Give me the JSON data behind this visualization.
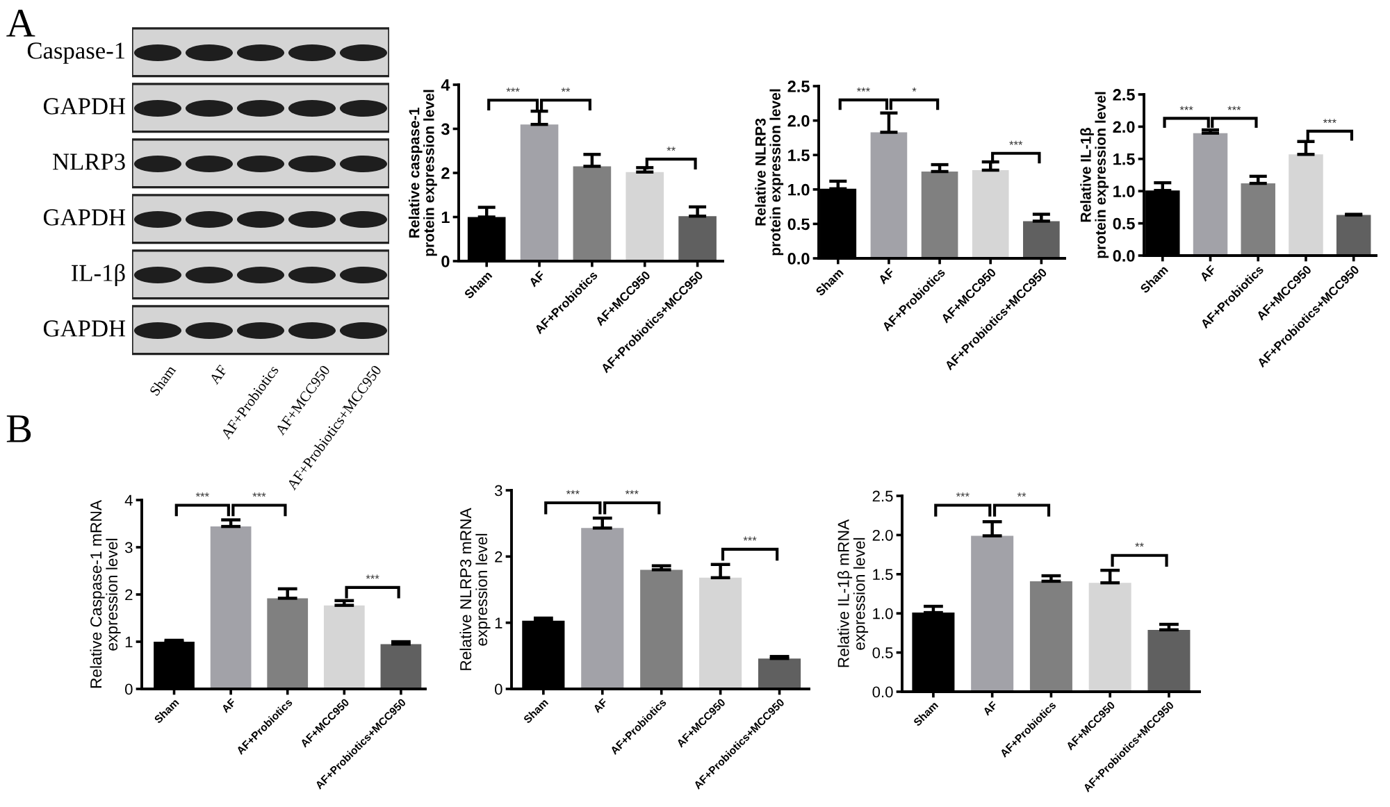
{
  "chart_data": [
    {
      "type": "other",
      "title": "A",
      "categories": [
        "Sham",
        "AF",
        "AF+Probiotics",
        "AF+MCC950",
        "AF+Probiotics+MCC950"
      ],
      "y_categories": [
        "Caspase-1",
        "GAPDH",
        "NLRP3",
        "GAPDH",
        "IL-1β",
        "GAPDH"
      ]
    },
    {
      "type": "bar",
      "categories": [
        "Sham",
        "AF",
        "AF+Probiotics",
        "AF+MCC950",
        "AF+Probiotics+MCC950"
      ],
      "values": [
        1.0,
        3.1,
        2.15,
        2.02,
        1.02
      ],
      "errors": [
        [
          1.0,
          1.22
        ],
        [
          3.1,
          3.4
        ],
        [
          2.15,
          2.42
        ],
        [
          2.02,
          2.12
        ],
        [
          1.02,
          1.23
        ]
      ],
      "colors": [
        "#000000",
        "#a2a2a8",
        "#808080",
        "#d6d6d6",
        "#606060"
      ],
      "ylabel": "Relative caspase-1\nprotein expression level",
      "ylim": [
        0,
        4
      ],
      "yticks": [
        0,
        1,
        2,
        3,
        4
      ],
      "annotations": [
        "***",
        "**",
        "**"
      ]
    },
    {
      "type": "bar",
      "categories": [
        "Sham",
        "AF",
        "AF+Probiotics",
        "AF+MCC950",
        "AF+Probiotics+MCC950"
      ],
      "values": [
        1.01,
        1.83,
        1.26,
        1.28,
        0.54
      ],
      "errors": [
        [
          1.01,
          1.12
        ],
        [
          1.83,
          2.11
        ],
        [
          1.26,
          1.36
        ],
        [
          1.28,
          1.4
        ],
        [
          0.54,
          0.64
        ]
      ],
      "colors": [
        "#000000",
        "#a2a2a8",
        "#808080",
        "#d6d6d6",
        "#606060"
      ],
      "ylabel": "Relative NLRP3\nprotein expression level",
      "ylim": [
        0,
        2.5
      ],
      "yticks": [
        {
          "value": 0,
          "label": "0.0"
        },
        {
          "value": 0.5,
          "label": "0.5"
        },
        {
          "value": 1,
          "label": "1.0"
        },
        {
          "value": 1.5,
          "label": "1.5"
        },
        {
          "value": 2,
          "label": "2.0"
        },
        {
          "value": 2.5,
          "label": "2.5"
        }
      ],
      "annotations": [
        "***",
        "*",
        "***"
      ]
    },
    {
      "type": "bar",
      "categories": [
        "Sham",
        "AF",
        "AF+Probiotics",
        "AF+MCC950",
        "AF+Probiotics+MCC950"
      ],
      "values": [
        1.01,
        1.9,
        1.12,
        1.57,
        0.63
      ],
      "errors": [
        [
          1.01,
          1.13
        ],
        [
          1.9,
          1.95
        ],
        [
          1.12,
          1.23
        ],
        [
          1.57,
          1.77
        ],
        [
          0.63,
          0.64
        ]
      ],
      "colors": [
        "#000000",
        "#a2a2a8",
        "#808080",
        "#d6d6d6",
        "#606060"
      ],
      "ylabel": "Relative IL-1β\nprotein expression level",
      "ylim": [
        0,
        2.5
      ],
      "yticks": [
        {
          "value": 0,
          "label": "0.0"
        },
        {
          "value": 0.5,
          "label": "0.5"
        },
        {
          "value": 1,
          "label": "1.0"
        },
        {
          "value": 1.5,
          "label": "1.5"
        },
        {
          "value": 2,
          "label": "2.0"
        },
        {
          "value": 2.5,
          "label": "2.5"
        }
      ],
      "annotations": [
        "***",
        "***",
        "***"
      ]
    },
    {
      "type": "bar",
      "title": "B",
      "categories": [
        "Sham",
        "AF",
        "AF+Probiotics",
        "AF+MCC950",
        "AF+Probiotics+MCC950"
      ],
      "values": [
        1.0,
        3.44,
        1.92,
        1.77,
        0.95
      ],
      "errors": [
        [
          1.0,
          1.03
        ],
        [
          3.44,
          3.58
        ],
        [
          1.92,
          2.12
        ],
        [
          1.77,
          1.87
        ],
        [
          0.95,
          1.0
        ]
      ],
      "colors": [
        "#000000",
        "#a2a2a8",
        "#808080",
        "#d6d6d6",
        "#606060"
      ],
      "ylabel": "Relative Caspase-1 mRNA\nexpression level",
      "ylim": [
        0,
        4
      ],
      "yticks": [
        0,
        1,
        2,
        3,
        4
      ],
      "annotations": [
        "***",
        "***",
        "***"
      ]
    },
    {
      "type": "bar",
      "categories": [
        "Sham",
        "AF",
        "AF+Probiotics",
        "AF+MCC950",
        "AF+Probiotics+MCC950"
      ],
      "values": [
        1.03,
        2.43,
        1.8,
        1.68,
        0.46
      ],
      "errors": [
        [
          1.03,
          1.07
        ],
        [
          2.43,
          2.58
        ],
        [
          1.8,
          1.86
        ],
        [
          1.68,
          1.88
        ],
        [
          0.46,
          0.49
        ]
      ],
      "colors": [
        "#000000",
        "#a2a2a8",
        "#808080",
        "#d6d6d6",
        "#606060"
      ],
      "ylabel": "Relative NLRP3 mRNA\nexpression level",
      "ylim": [
        0,
        3
      ],
      "yticks": [
        0,
        1,
        2,
        3
      ],
      "annotations": [
        "***",
        "***",
        "***"
      ]
    },
    {
      "type": "bar",
      "categories": [
        "Sham",
        "AF",
        "AF+Probiotics",
        "AF+MCC950",
        "AF+Probiotics+MCC950"
      ],
      "values": [
        1.01,
        1.99,
        1.41,
        1.39,
        0.79
      ],
      "errors": [
        [
          1.01,
          1.09
        ],
        [
          1.99,
          2.17
        ],
        [
          1.41,
          1.48
        ],
        [
          1.39,
          1.55
        ],
        [
          0.79,
          0.86
        ]
      ],
      "colors": [
        "#000000",
        "#a2a2a8",
        "#808080",
        "#d6d6d6",
        "#606060"
      ],
      "ylabel": "Relative IL-1β mRNA\nexpression level",
      "ylim": [
        0,
        2.5
      ],
      "yticks": [
        {
          "value": 0,
          "label": "0.0"
        },
        {
          "value": 0.5,
          "label": "0.5"
        },
        {
          "value": 1,
          "label": "1.0"
        },
        {
          "value": 1.5,
          "label": "1.5"
        },
        {
          "value": 2,
          "label": "2.0"
        },
        {
          "value": 2.5,
          "label": "2.5"
        }
      ],
      "annotations": [
        "***",
        "**",
        "**"
      ]
    }
  ]
}
